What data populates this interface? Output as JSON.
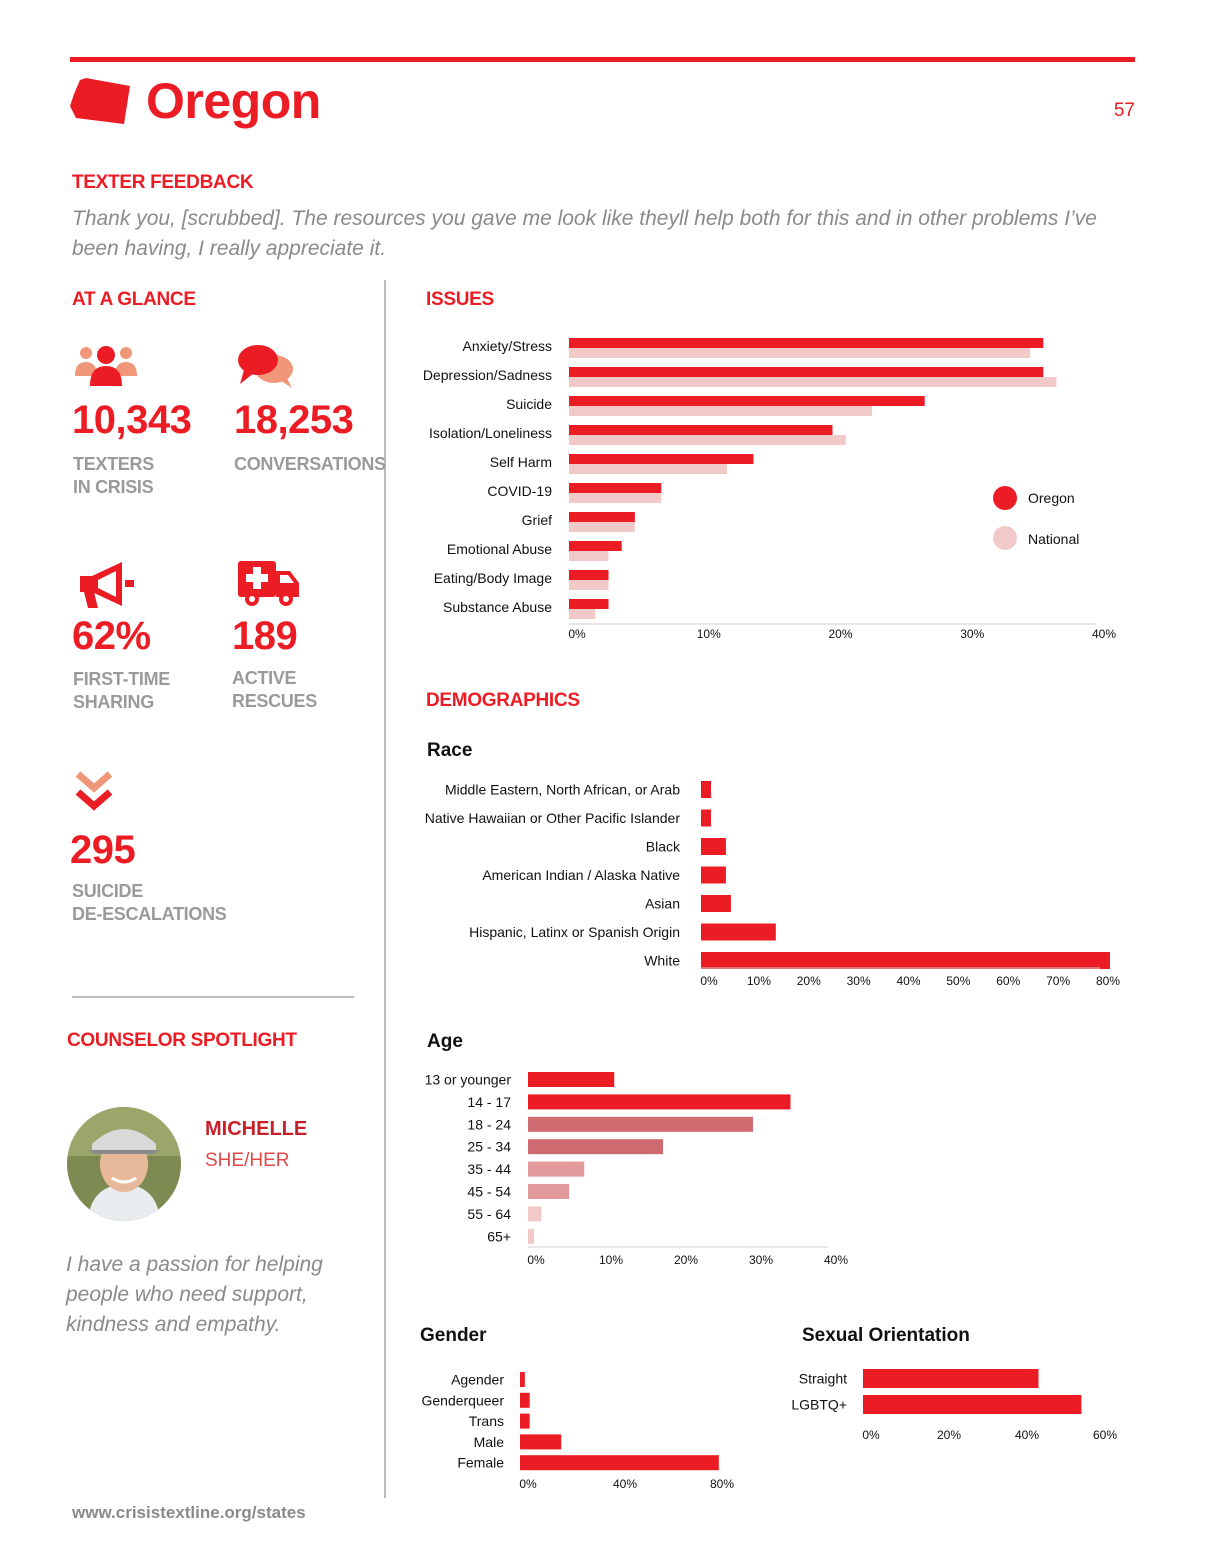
{
  "header": {
    "title": "Oregon",
    "page_number": "57"
  },
  "feedback": {
    "heading": "TEXTER FEEDBACK",
    "quote": "Thank you, [scrubbed]. The resources you gave me look like theyll help both for this and in other problems I’ve been having, I really appreciate it."
  },
  "glance": {
    "heading": "AT A GLANCE",
    "texters": {
      "value": "10,343",
      "label1": "TEXTERS",
      "label2": "IN CRISIS"
    },
    "conversations": {
      "value": "18,253",
      "label1": "CONVERSATIONS"
    },
    "first_time": {
      "value": "62%",
      "label1": "FIRST-TIME",
      "label2": "SHARING"
    },
    "rescues": {
      "value": "189",
      "label1": "ACTIVE",
      "label2": "RESCUES"
    },
    "deescalations": {
      "value": "295",
      "label1": "SUICIDE",
      "label2": "DE-ESCALATIONS"
    }
  },
  "spotlight": {
    "heading": "COUNSELOR SPOTLIGHT",
    "name": "MICHELLE",
    "pronouns": "SHE/HER",
    "quote": "I have a passion for helping people who need support, kindness and empathy."
  },
  "demographics_heading": "DEMOGRAPHICS",
  "footer": "www.crisistextline.org/states",
  "colors": {
    "red": "#ec1c24",
    "national": "#f2c9c9",
    "grey": "#9a9a9a"
  },
  "chart_data": [
    {
      "id": "issues",
      "type": "bar",
      "orientation": "horizontal",
      "title": "ISSUES",
      "categories": [
        "Anxiety/Stress",
        "Depression/Sadness",
        "Suicide",
        "Isolation/Loneliness",
        "Self Harm",
        "COVID-19",
        "Grief",
        "Emotional Abuse",
        "Eating/Body Image",
        "Substance Abuse"
      ],
      "series": [
        {
          "name": "Oregon",
          "color": "#ec1c24",
          "values": [
            36,
            36,
            27,
            20,
            14,
            7,
            5,
            4,
            3,
            3
          ]
        },
        {
          "name": "National",
          "color": "#f2c9c9",
          "values": [
            35,
            37,
            23,
            21,
            12,
            7,
            5,
            3,
            3,
            2
          ]
        }
      ],
      "xlim": [
        0,
        40
      ],
      "ticks": [
        "0%",
        "10%",
        "20%",
        "30%",
        "40%"
      ],
      "legend": "right"
    },
    {
      "id": "race",
      "type": "bar",
      "orientation": "horizontal",
      "title": "Race",
      "categories": [
        "Middle Eastern, North African, or Arab",
        "Native Hawaiian or Other Pacific Islander",
        "Black",
        "American Indian / Alaska Native",
        "Asian",
        "Hispanic, Latinx or Spanish Origin",
        "White"
      ],
      "values": [
        2,
        2,
        5,
        5,
        6,
        15,
        82
      ],
      "xlim": [
        0,
        80
      ],
      "ticks": [
        "0%",
        "10%",
        "20%",
        "30%",
        "40%",
        "50%",
        "60%",
        "70%",
        "80%"
      ]
    },
    {
      "id": "age",
      "type": "bar",
      "orientation": "horizontal",
      "title": "Age",
      "categories": [
        "13 or younger",
        "14 - 17",
        "18 - 24",
        "25 - 34",
        "35 - 44",
        "45 - 54",
        "55 - 64",
        "65+"
      ],
      "values": [
        11.5,
        35,
        30,
        18,
        7.5,
        5.5,
        1.8,
        0.8
      ],
      "bar_colors": [
        "#ec1c24",
        "#ec1c24",
        "#cf6b70",
        "#cf6b70",
        "#e39a9c",
        "#e39a9c",
        "#f2c9c9",
        "#f2c9c9"
      ],
      "xlim": [
        0,
        40
      ],
      "ticks": [
        "0%",
        "10%",
        "20%",
        "30%",
        "40%"
      ]
    },
    {
      "id": "gender",
      "type": "bar",
      "orientation": "horizontal",
      "title": "Gender",
      "categories": [
        "Agender",
        "Genderqueer",
        "Trans",
        "Male",
        "Female"
      ],
      "values": [
        2,
        4,
        4,
        17,
        82
      ],
      "xlim": [
        0,
        80
      ],
      "ticks": [
        "0%",
        "40%",
        "80%"
      ]
    },
    {
      "id": "orientation",
      "type": "bar",
      "orientation": "horizontal",
      "title": "Sexual Orientation",
      "categories": [
        "Straight",
        "LGBTQ+"
      ],
      "values": [
        45,
        56
      ],
      "xlim": [
        0,
        60
      ],
      "ticks": [
        "0%",
        "20%",
        "40%",
        "60%"
      ]
    }
  ]
}
